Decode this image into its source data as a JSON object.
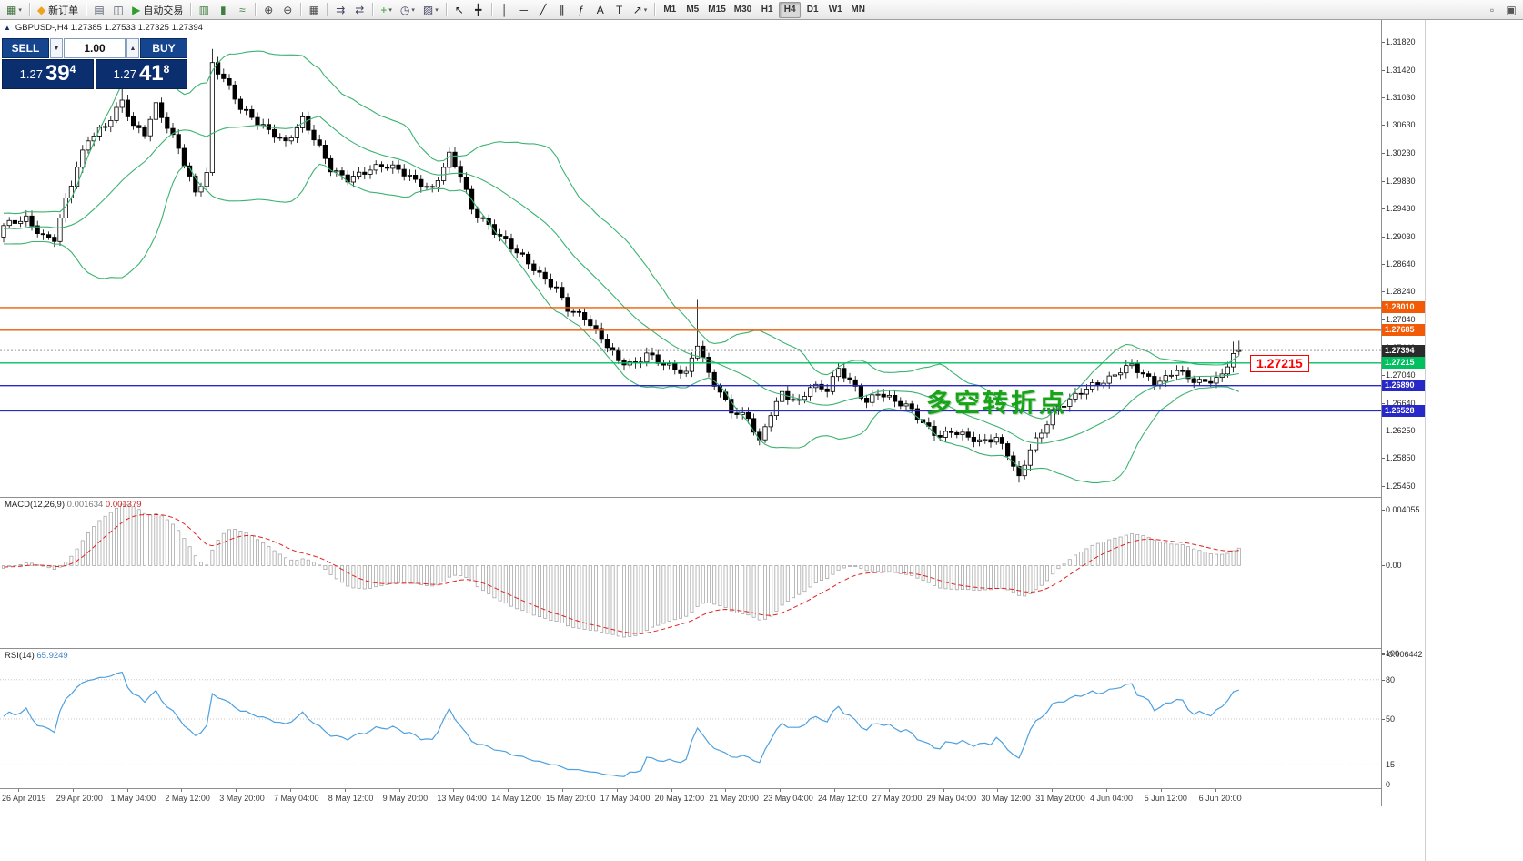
{
  "toolbar": {
    "groups": [
      {
        "items": [
          {
            "name": "new-chart-button",
            "glyph": "▦",
            "color": "#3b6e3b",
            "caret": true
          }
        ]
      },
      {
        "items": [
          {
            "name": "new-order-button",
            "glyph": "◆",
            "color": "#efa21a",
            "label": "新订单"
          }
        ]
      },
      {
        "items": [
          {
            "name": "market-watch-button",
            "glyph": "▤",
            "color": "#55606e"
          },
          {
            "name": "navigator-button",
            "glyph": "◫",
            "color": "#55606e"
          },
          {
            "name": "autotrading-button",
            "glyph": "▶",
            "color": "#2f9e2f",
            "label": "自动交易"
          }
        ]
      },
      {
        "items": [
          {
            "name": "bar-chart-button",
            "glyph": "▥",
            "color": "#3f7f3f"
          },
          {
            "name": "candlestick-chart-button",
            "glyph": "▮",
            "color": "#3f7f3f"
          },
          {
            "name": "line-chart-button",
            "glyph": "≈",
            "color": "#3f7f3f"
          }
        ]
      },
      {
        "items": [
          {
            "name": "zoom-in-button",
            "glyph": "⊕",
            "color": "#444444"
          },
          {
            "name": "zoom-out-button",
            "glyph": "⊖",
            "color": "#444444"
          }
        ]
      },
      {
        "items": [
          {
            "name": "tile-windows-button",
            "glyph": "▦",
            "color": "#444444"
          }
        ]
      },
      {
        "items": [
          {
            "name": "auto-scroll-button",
            "glyph": "⇉",
            "color": "#444466"
          },
          {
            "name": "chart-shift-button",
            "glyph": "⇄",
            "color": "#444466"
          }
        ]
      },
      {
        "items": [
          {
            "name": "indicators-button",
            "glyph": "+",
            "color": "#2f9e2f",
            "caret": true
          },
          {
            "name": "periods-button",
            "glyph": "◷",
            "color": "#444466",
            "caret": true
          },
          {
            "name": "templates-button",
            "glyph": "▨",
            "color": "#444466",
            "caret": true
          }
        ]
      },
      {
        "items": [
          {
            "name": "cursor-button",
            "glyph": "↖",
            "color": "#222222"
          },
          {
            "name": "crosshair-button",
            "glyph": "╋",
            "color": "#222222"
          }
        ]
      },
      {
        "items": [
          {
            "name": "vertical-line-button",
            "glyph": "│",
            "color": "#222222"
          },
          {
            "name": "horizontal-line-button",
            "glyph": "─",
            "color": "#222222"
          },
          {
            "name": "trendline-button",
            "glyph": "╱",
            "color": "#222222"
          },
          {
            "name": "equidistant-channel-button",
            "glyph": "∥",
            "color": "#222222"
          },
          {
            "name": "fibonacci-button",
            "glyph": "ƒ",
            "color": "#222222"
          },
          {
            "name": "text-button",
            "glyph": "A",
            "color": "#222222"
          },
          {
            "name": "text-label-button",
            "glyph": "T",
            "color": "#222222"
          },
          {
            "name": "arrows-button",
            "glyph": "↗",
            "color": "#222222",
            "caret": true
          }
        ]
      }
    ],
    "timeframes": [
      "M1",
      "M5",
      "M15",
      "M30",
      "H1",
      "H4",
      "D1",
      "W1",
      "MN"
    ],
    "active_timeframe": "H4",
    "right_icons": [
      {
        "name": "new-chart-window-button",
        "glyph": "▫"
      },
      {
        "name": "chart-list-button",
        "glyph": "▣"
      }
    ]
  },
  "quote_panel": {
    "collapse_arrow": "▲",
    "sell_label": "SELL",
    "buy_label": "BUY",
    "volume_value": "1.00",
    "volume_down_glyph": "▼",
    "volume_up_glyph": "▲",
    "sell_price_prefix": "1.27",
    "sell_price_pips": "39",
    "sell_price_sup": "4",
    "buy_price_prefix": "1.27",
    "buy_price_pips": "41",
    "buy_price_sup": "8"
  },
  "chart": {
    "info_line": "GBPUSD-,H4 1.27385 1.27533 1.27325 1.27394",
    "annotation": "多空转折点",
    "price_callout": "1.27215"
  },
  "macd": {
    "label": "MACD(12,26,9)",
    "main_value": "0.001634",
    "signal_value": "0.001379"
  },
  "rsi": {
    "label": "RSI(14)",
    "value": "65.9249"
  },
  "chart_data": {
    "type": "candlestick",
    "symbol": "GBPUSD-",
    "timeframe": "H4",
    "ohlc_current": {
      "open": 1.27385,
      "high": 1.27533,
      "low": 1.27325,
      "close": 1.27394
    },
    "price_axis": {
      "min": 1.2545,
      "max": 1.3182,
      "ticks": [
        "1.31820",
        "1.31420",
        "1.31030",
        "1.30630",
        "1.30230",
        "1.29830",
        "1.29430",
        "1.29030",
        "1.28640",
        "1.28240",
        "1.27840",
        "1.27440",
        "1.27040",
        "1.26640",
        "1.26250",
        "1.25850",
        "1.25450"
      ]
    },
    "candle_count": 220,
    "warmup": 40,
    "candle_spacing_px": 6.2,
    "close_waypoints": [
      [
        0,
        1.2916
      ],
      [
        4,
        1.2928
      ],
      [
        7,
        1.2905
      ],
      [
        9,
        1.2902
      ],
      [
        11,
        1.2955
      ],
      [
        13,
        1.3
      ],
      [
        15,
        1.304
      ],
      [
        18,
        1.3062
      ],
      [
        21,
        1.31
      ],
      [
        23,
        1.3062
      ],
      [
        25,
        1.305
      ],
      [
        27,
        1.3088
      ],
      [
        29,
        1.3058
      ],
      [
        31,
        1.303
      ],
      [
        34,
        1.2968
      ],
      [
        36,
        1.2995
      ],
      [
        37,
        1.315
      ],
      [
        39,
        1.3128
      ],
      [
        42,
        1.3085
      ],
      [
        45,
        1.3068
      ],
      [
        48,
        1.3052
      ],
      [
        50,
        1.3038
      ],
      [
        53,
        1.3068
      ],
      [
        56,
        1.3028
      ],
      [
        58,
        1.3
      ],
      [
        61,
        1.2988
      ],
      [
        64,
        1.2996
      ],
      [
        67,
        1.3002
      ],
      [
        70,
        1.2998
      ],
      [
        73,
        1.2985
      ],
      [
        76,
        1.2972
      ],
      [
        79,
        1.3018
      ],
      [
        81,
        1.2988
      ],
      [
        83,
        1.294
      ],
      [
        86,
        1.292
      ],
      [
        89,
        1.2898
      ],
      [
        92,
        1.2872
      ],
      [
        95,
        1.2845
      ],
      [
        98,
        1.2828
      ],
      [
        100,
        1.2802
      ],
      [
        103,
        1.2788
      ],
      [
        106,
        1.2755
      ],
      [
        109,
        1.2722
      ],
      [
        112,
        1.272
      ],
      [
        114,
        1.2738
      ],
      [
        116,
        1.2726
      ],
      [
        118,
        1.2716
      ],
      [
        121,
        1.2703
      ],
      [
        123,
        1.2748
      ],
      [
        125,
        1.2706
      ],
      [
        127,
        1.2682
      ],
      [
        129,
        1.2655
      ],
      [
        132,
        1.2642
      ],
      [
        134,
        1.2605
      ],
      [
        136,
        1.2648
      ],
      [
        138,
        1.2678
      ],
      [
        141,
        1.2668
      ],
      [
        143,
        1.269
      ],
      [
        146,
        1.2682
      ],
      [
        148,
        1.271
      ],
      [
        150,
        1.2694
      ],
      [
        153,
        1.2667
      ],
      [
        155,
        1.2682
      ],
      [
        158,
        1.2667
      ],
      [
        161,
        1.2652
      ],
      [
        163,
        1.2632
      ],
      [
        166,
        1.2617
      ],
      [
        168,
        1.2627
      ],
      [
        171,
        1.2616
      ],
      [
        173,
        1.2606
      ],
      [
        176,
        1.2611
      ],
      [
        178,
        1.2592
      ],
      [
        180,
        1.2558
      ],
      [
        182,
        1.2602
      ],
      [
        184,
        1.2622
      ],
      [
        186,
        1.265
      ],
      [
        189,
        1.2666
      ],
      [
        191,
        1.268
      ],
      [
        193,
        1.2691
      ],
      [
        196,
        1.2701
      ],
      [
        198,
        1.2711
      ],
      [
        200,
        1.2716
      ],
      [
        202,
        1.2702
      ],
      [
        204,
        1.2692
      ],
      [
        206,
        1.2701
      ],
      [
        208,
        1.2716
      ],
      [
        210,
        1.2701
      ],
      [
        213,
        1.2691
      ],
      [
        216,
        1.27
      ],
      [
        218,
        1.2736
      ],
      [
        219,
        1.27394
      ]
    ],
    "spikes": [
      {
        "i": 21,
        "high": 1.3118
      },
      {
        "i": 37,
        "high": 1.3172
      },
      {
        "i": 123,
        "high": 1.2812
      },
      {
        "i": 180,
        "low": 1.255
      },
      {
        "i": 218,
        "high": 1.2752
      }
    ],
    "levels": [
      {
        "price": "1.28010",
        "color": "#f25a05",
        "type": "resistance"
      },
      {
        "price": "1.27685",
        "color": "#f25a05",
        "type": "resistance"
      },
      {
        "price": "1.27394",
        "color": "#333333",
        "type": "current-price"
      },
      {
        "price": "1.27215",
        "color": "#00c060",
        "type": "pivot"
      },
      {
        "price": "1.26890",
        "color": "#2828c8",
        "type": "support"
      },
      {
        "price": "1.26528",
        "color": "#2828c8",
        "type": "support"
      }
    ],
    "indicators": {
      "bollinger": {
        "period": 20,
        "deviation": 2,
        "color": "#3cb371"
      },
      "macd": {
        "fast": 12,
        "slow": 26,
        "signal": 9,
        "main_value": 0.001634,
        "signal_value": 0.001379,
        "axis_ticks": [
          "0.004055",
          "0.00",
          "-0.006442"
        ],
        "histogram_color": "#a8a8a8",
        "signal_color": "#e02020"
      },
      "rsi": {
        "period": 14,
        "value": 65.9249,
        "axis_ticks": [
          "100",
          "80",
          "50",
          "15",
          "0"
        ],
        "levels": [
          80,
          50,
          15
        ],
        "color": "#4da0e0"
      }
    },
    "time_labels": [
      "26 Apr 2019",
      "29 Apr 20:00",
      "1 May 04:00",
      "2 May 12:00",
      "3 May 20:00",
      "7 May 04:00",
      "8 May 12:00",
      "9 May 20:00",
      "13 May 04:00",
      "14 May 12:00",
      "15 May 20:00",
      "17 May 04:00",
      "20 May 12:00",
      "21 May 20:00",
      "23 May 04:00",
      "24 May 12:00",
      "27 May 20:00",
      "29 May 04:00",
      "30 May 12:00",
      "31 May 20:00",
      "4 Jun 04:00",
      "5 Jun 12:00",
      "6 Jun 20:00"
    ],
    "first_label_x": 2,
    "label_spacing_px": 59.8
  }
}
